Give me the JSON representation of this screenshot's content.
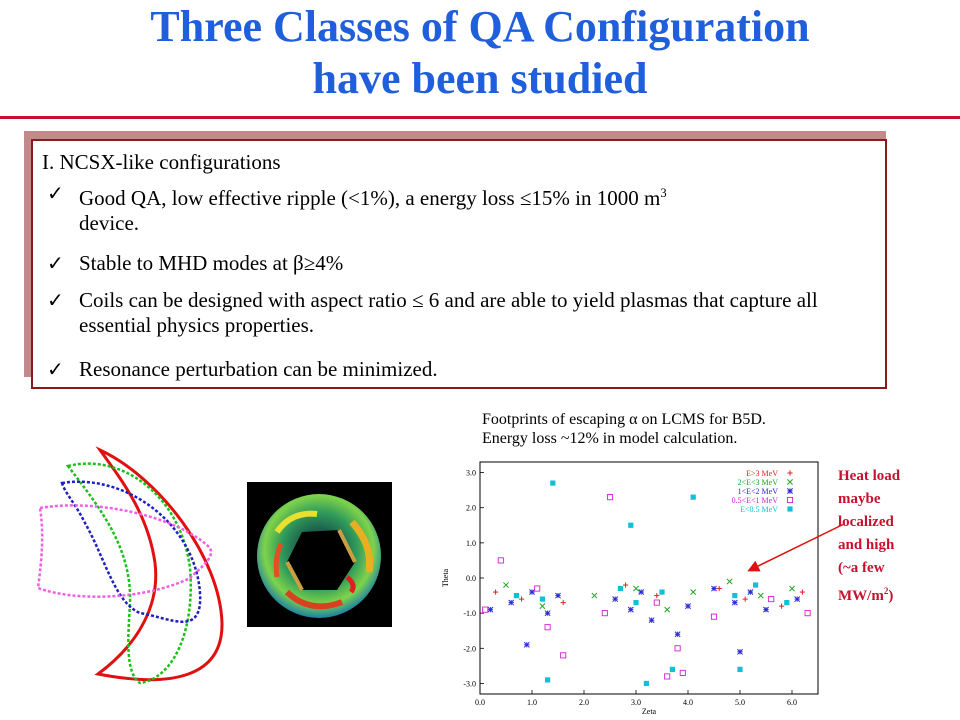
{
  "title": {
    "line1": "Three Classes of QA Configuration",
    "line2": "have been studied"
  },
  "box": {
    "heading": "I. NCSX-like configurations",
    "bullets": [
      {
        "pre": "Good QA, low effective ripple (<1%), a energy loss ≤15% in 1000 m",
        "sup": "3",
        "post": "device."
      },
      {
        "pre": "Stable to MHD modes at  β≥4%"
      },
      {
        "pre": "Coils can be designed with aspect ratio ≤ 6 and are able to yield plasmas that capture all essential physics properties."
      },
      {
        "pre": "Resonance perturbation can be minimized."
      }
    ]
  },
  "footprint_caption": {
    "line1": "Footprints of escaping α on LCMS for B5D.",
    "line2": "Energy loss ~12% in model calculation."
  },
  "heat_note": {
    "l1": "Heat load",
    "l2": "maybe",
    "l3": "localized",
    "l4": "and high",
    "l5": "(~a few",
    "l6a": "MW/m",
    "l6sup": "2",
    "l6b": ")"
  },
  "colors": {
    "title": "#1f5fdc",
    "rule": "#c8102e",
    "box_border": "#8b1a1a",
    "heat_note": "#c8102e"
  },
  "chart_data": {
    "type": "scatter",
    "xlabel": "Zeta",
    "ylabel": "Theta",
    "xlim": [
      0.0,
      6.5
    ],
    "ylim": [
      -3.3,
      3.3
    ],
    "xticks": [
      "0.0",
      "1.0",
      "2.0",
      "3.0",
      "4.0",
      "5.0",
      "6.0"
    ],
    "yticks": [
      "3.0",
      "2.0",
      "1.0",
      "0.0",
      "-1.0",
      "-2.0",
      "-3.0"
    ],
    "legend_position": "top-right",
    "series": [
      {
        "name": "E>3 MeV",
        "color": "#e02020",
        "marker": "+",
        "points": [
          [
            0.3,
            -0.4
          ],
          [
            0.8,
            -0.6
          ],
          [
            1.6,
            -0.7
          ],
          [
            2.8,
            -0.2
          ],
          [
            3.4,
            -0.5
          ],
          [
            4.6,
            -0.3
          ],
          [
            5.1,
            -0.6
          ],
          [
            5.8,
            -0.8
          ],
          [
            6.2,
            -0.4
          ]
        ]
      },
      {
        "name": "2<E<3 MeV",
        "color": "#1fa81f",
        "marker": "x",
        "points": [
          [
            0.5,
            -0.2
          ],
          [
            1.2,
            -0.8
          ],
          [
            2.2,
            -0.5
          ],
          [
            3.0,
            -0.3
          ],
          [
            3.6,
            -0.9
          ],
          [
            4.1,
            -0.4
          ],
          [
            4.8,
            -0.1
          ],
          [
            5.4,
            -0.5
          ],
          [
            6.0,
            -0.3
          ]
        ]
      },
      {
        "name": "1<E<2 MeV",
        "color": "#2a2ad8",
        "marker": "*",
        "points": [
          [
            0.2,
            -0.9
          ],
          [
            0.6,
            -0.7
          ],
          [
            1.0,
            -0.4
          ],
          [
            1.3,
            -1.0
          ],
          [
            1.5,
            -0.5
          ],
          [
            2.6,
            -0.6
          ],
          [
            2.9,
            -0.9
          ],
          [
            3.1,
            -0.4
          ],
          [
            3.3,
            -1.2
          ],
          [
            4.0,
            -0.8
          ],
          [
            4.5,
            -0.3
          ],
          [
            4.9,
            -0.7
          ],
          [
            5.2,
            -0.4
          ],
          [
            5.5,
            -0.9
          ],
          [
            6.1,
            -0.6
          ],
          [
            0.9,
            -1.9
          ],
          [
            3.8,
            -1.6
          ],
          [
            5.0,
            -2.1
          ]
        ]
      },
      {
        "name": "0.5<E<1 MeV",
        "color": "#d020d0",
        "marker": "square-open",
        "points": [
          [
            0.4,
            0.5
          ],
          [
            0.1,
            -0.9
          ],
          [
            2.5,
            2.3
          ],
          [
            1.6,
            -2.2
          ],
          [
            1.3,
            -1.4
          ],
          [
            3.6,
            -2.8
          ],
          [
            3.9,
            -2.7
          ],
          [
            3.8,
            -2.0
          ],
          [
            2.4,
            -1.0
          ],
          [
            3.4,
            -0.7
          ],
          [
            4.5,
            -1.1
          ],
          [
            5.6,
            -0.6
          ],
          [
            6.3,
            -1.0
          ],
          [
            1.1,
            -0.3
          ]
        ]
      },
      {
        "name": "E<0.5 MeV",
        "color": "#10c0d8",
        "marker": "square",
        "points": [
          [
            1.4,
            2.7
          ],
          [
            2.9,
            1.5
          ],
          [
            4.1,
            2.3
          ],
          [
            1.3,
            -2.9
          ],
          [
            3.2,
            -3.0
          ],
          [
            3.7,
            -2.6
          ],
          [
            5.0,
            -2.6
          ],
          [
            0.7,
            -0.5
          ],
          [
            1.2,
            -0.6
          ],
          [
            2.7,
            -0.3
          ],
          [
            3.0,
            -0.7
          ],
          [
            3.5,
            -0.4
          ],
          [
            4.9,
            -0.5
          ],
          [
            5.3,
            -0.2
          ],
          [
            5.9,
            -0.7
          ]
        ]
      }
    ]
  }
}
